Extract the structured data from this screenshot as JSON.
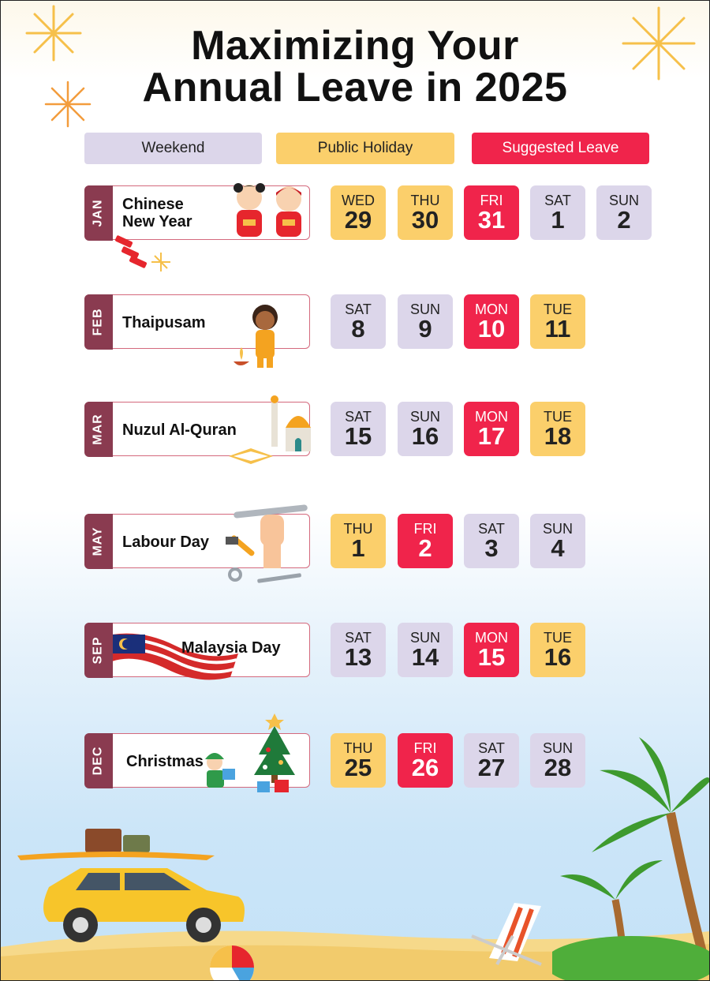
{
  "title": {
    "line1": "Maximizing Your",
    "line2": "Annual Leave in 2025"
  },
  "legend": {
    "weekend": "Weekend",
    "public_holiday": "Public Holiday",
    "suggested_leave": "Suggested Leave"
  },
  "colors": {
    "weekend": "#dcd6ea",
    "public_holiday": "#fbcf6b",
    "suggested_leave": "#f0244b",
    "month_tab": "#8a3b50"
  },
  "rows": [
    {
      "month": "JAN",
      "holiday_line1": "Chinese",
      "holiday_line2": "New Year",
      "days": [
        {
          "dow": "WED",
          "date": "29",
          "type": "public"
        },
        {
          "dow": "THU",
          "date": "30",
          "type": "public"
        },
        {
          "dow": "FRI",
          "date": "31",
          "type": "leave"
        },
        {
          "dow": "SAT",
          "date": "1",
          "type": "weekend"
        },
        {
          "dow": "SUN",
          "date": "2",
          "type": "weekend"
        }
      ]
    },
    {
      "month": "FEB",
      "holiday_line1": "Thaipusam",
      "holiday_line2": "",
      "days": [
        {
          "dow": "SAT",
          "date": "8",
          "type": "weekend"
        },
        {
          "dow": "SUN",
          "date": "9",
          "type": "weekend"
        },
        {
          "dow": "MON",
          "date": "10",
          "type": "leave"
        },
        {
          "dow": "TUE",
          "date": "11",
          "type": "public"
        }
      ]
    },
    {
      "month": "MAR",
      "holiday_line1": "Nuzul Al-Quran",
      "holiday_line2": "",
      "days": [
        {
          "dow": "SAT",
          "date": "15",
          "type": "weekend"
        },
        {
          "dow": "SUN",
          "date": "16",
          "type": "weekend"
        },
        {
          "dow": "MON",
          "date": "17",
          "type": "leave"
        },
        {
          "dow": "TUE",
          "date": "18",
          "type": "public"
        }
      ]
    },
    {
      "month": "MAY",
      "holiday_line1": "Labour Day",
      "holiday_line2": "",
      "days": [
        {
          "dow": "THU",
          "date": "1",
          "type": "public"
        },
        {
          "dow": "FRI",
          "date": "2",
          "type": "leave"
        },
        {
          "dow": "SAT",
          "date": "3",
          "type": "weekend"
        },
        {
          "dow": "SUN",
          "date": "4",
          "type": "weekend"
        }
      ]
    },
    {
      "month": "SEP",
      "holiday_line1": "Malaysia Day",
      "holiday_line2": "",
      "days": [
        {
          "dow": "SAT",
          "date": "13",
          "type": "weekend"
        },
        {
          "dow": "SUN",
          "date": "14",
          "type": "weekend"
        },
        {
          "dow": "MON",
          "date": "15",
          "type": "leave"
        },
        {
          "dow": "TUE",
          "date": "16",
          "type": "public"
        }
      ]
    },
    {
      "month": "DEC",
      "holiday_line1": "Christmas",
      "holiday_line2": "",
      "days": [
        {
          "dow": "THU",
          "date": "25",
          "type": "public"
        },
        {
          "dow": "FRI",
          "date": "26",
          "type": "leave"
        },
        {
          "dow": "SAT",
          "date": "27",
          "type": "weekend"
        },
        {
          "dow": "SUN",
          "date": "28",
          "type": "weekend"
        }
      ]
    }
  ]
}
